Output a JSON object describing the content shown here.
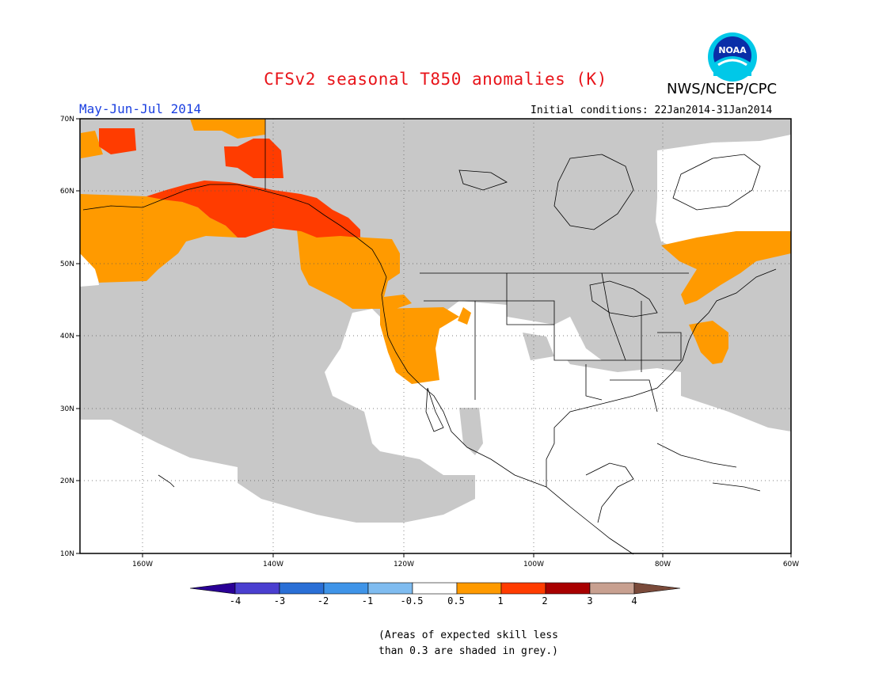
{
  "title": "CFSv2 seasonal T850 anomalies (K)",
  "organization": "NWS/NCEP/CPC",
  "logo_text": "NOAA",
  "period": "May-Jun-Jul 2014",
  "initial_conditions": "Initial conditions: 22Jan2014-31Jan2014",
  "lat_labels": [
    "70N",
    "60N",
    "50N",
    "40N",
    "30N",
    "20N",
    "10N"
  ],
  "lon_labels": [
    "160W",
    "140W",
    "120W",
    "100W",
    "80W",
    "60W"
  ],
  "colorbar": {
    "ticks": [
      "-4",
      "-3",
      "-2",
      "-1",
      "-0.5",
      "0.5",
      "1",
      "2",
      "3",
      "4"
    ],
    "colors": [
      "#2a0096",
      "#4a3fd0",
      "#2a6fd6",
      "#3f94e8",
      "#7fbcf0",
      "#ffffff",
      "#ff9a00",
      "#ff3c00",
      "#a80000",
      "#c8a090",
      "#7a4a3a"
    ]
  },
  "footnote": {
    "line1": "(Areas of expected skill less",
    "line2": "than 0.3 are shaded in grey.)"
  },
  "colors": {
    "grey_low_skill": "#c8c8c8",
    "anom_0_5_1": "#ff9a00",
    "anom_1_2": "#ff3c00"
  }
}
